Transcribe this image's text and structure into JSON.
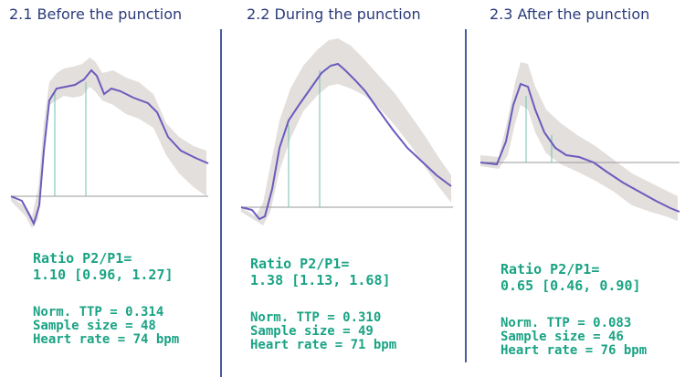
{
  "colors": {
    "title": "#2a3a7a",
    "divider": "#4a5a9a",
    "curve": "#6b5bbd",
    "band": "#e3dfdd",
    "baseline": "#9a9a9a",
    "marker": "#6fc3b0",
    "stats_text": "#1aa384"
  },
  "panels": [
    {
      "title": "2.1 Before the punction",
      "ratio_label": "Ratio P2/P1=",
      "ratio_value": "1.10 [0.96, 1.27]",
      "ttp": "Norm. TTP = 0.314",
      "sample": "Sample size = 48",
      "heart_rate": "Heart rate = 74 bpm"
    },
    {
      "title": "2.2 During the punction",
      "ratio_label": "Ratio P2/P1=",
      "ratio_value": "1.38 [1.13, 1.68]",
      "ttp": "Norm. TTP = 0.310",
      "sample": "Sample size = 49",
      "heart_rate": "Heart rate = 71 bpm"
    },
    {
      "title": "2.3 After the punction",
      "ratio_label": "Ratio P2/P1=",
      "ratio_value": "0.65 [0.46, 0.90]",
      "ttp": "Norm. TTP = 0.083",
      "sample": "Sample size = 46",
      "heart_rate": "Heart rate = 76 bpm"
    }
  ],
  "chart_data": [
    {
      "type": "line",
      "title": "2.1 Before the punction",
      "p2_p1_ratio": 1.1,
      "ratio_ci": [
        0.96,
        1.27
      ],
      "normalized_ttp": 0.314,
      "sample_size": 48,
      "heart_rate_bpm": 74
    },
    {
      "type": "line",
      "title": "2.2 During the punction",
      "p2_p1_ratio": 1.38,
      "ratio_ci": [
        1.13,
        1.68
      ],
      "normalized_ttp": 0.31,
      "sample_size": 49,
      "heart_rate_bpm": 71
    },
    {
      "type": "line",
      "title": "2.3 After the punction",
      "p2_p1_ratio": 0.65,
      "ratio_ci": [
        0.46,
        0.9
      ],
      "normalized_ttp": 0.083,
      "sample_size": 46,
      "heart_rate_bpm": 76
    }
  ]
}
